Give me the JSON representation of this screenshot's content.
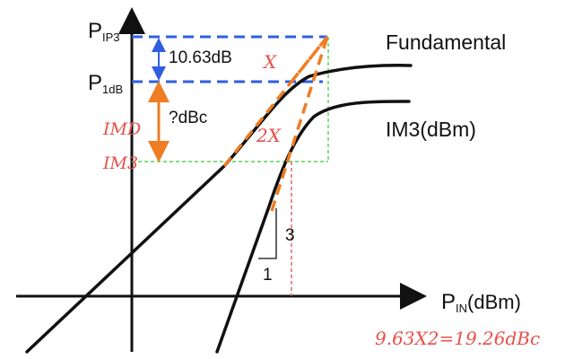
{
  "axes": {
    "y_label_pip3_main": "P",
    "y_label_pip3_sub": "IP3",
    "y_label_p1db_main": "P",
    "y_label_p1db_sub": "1dB",
    "x_label_main": "P",
    "x_label_sub": "IN",
    "x_label_unit": "(dBm)"
  },
  "curves": {
    "fundamental_label": "Fundamental",
    "im3_label": "IM3(dBm)"
  },
  "annotations": {
    "delta_ip3_p1db": "10.63dB",
    "question_dbc": "?dBc",
    "slope_rise": "3",
    "slope_run": "1",
    "hand_x": "X",
    "hand_2x": "2X",
    "hand_imd": "IMD",
    "hand_im3": "IM3",
    "hand_equation": "9.63X2=19.26dBc"
  },
  "colors": {
    "axis": "#111111",
    "blue_dashed": "#2f5fe0",
    "orange": "#ee7d24",
    "green_dashed": "#33cc33",
    "red_dashed": "#d9534f",
    "handwriting": "#e8504a"
  }
}
